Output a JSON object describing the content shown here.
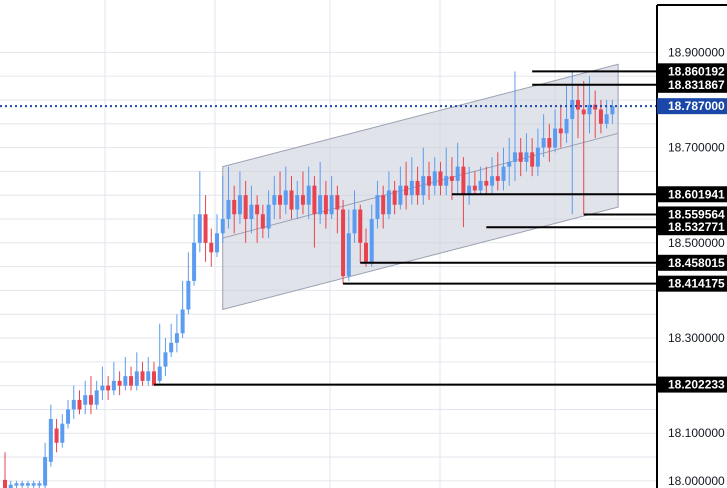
{
  "chart_data": {
    "type": "candlestick",
    "title": "",
    "xlabel": "",
    "ylabel": "",
    "ylim": [
      17.985,
      19.01
    ],
    "y_ticks": [
      "18.000000",
      "18.100000",
      "18.300000",
      "18.500000",
      "18.700000",
      "18.900000"
    ],
    "current_price": "18.787000",
    "grid": true,
    "colors": {
      "up": "#5b9cf0",
      "down": "#e8444f",
      "level": "#000000",
      "current": "#1a47a8",
      "channel_fill": "#c8ccd8",
      "channel_edge": "#9aa0b0",
      "grid": "#e3e6ee"
    },
    "levels": [
      {
        "label": "18.860192",
        "value": 18.860192,
        "from_bar": 92
      },
      {
        "label": "18.831867",
        "value": 18.831867,
        "from_bar": 92
      },
      {
        "label": "18.601941",
        "value": 18.601941,
        "from_bar": 78
      },
      {
        "label": "18.559564",
        "value": 18.559564,
        "from_bar": 101
      },
      {
        "label": "18.532771",
        "value": 18.532771,
        "from_bar": 84
      },
      {
        "label": "18.458015",
        "value": 18.458015,
        "from_bar": 62
      },
      {
        "label": "18.414175",
        "value": 18.414175,
        "from_bar": 59
      },
      {
        "label": "18.202233",
        "value": 18.202233,
        "from_bar": 26
      }
    ],
    "channel": {
      "from_bar": 38,
      "to_bar": 107,
      "upper": [
        18.66,
        18.875
      ],
      "middle": [
        18.51,
        18.73
      ],
      "lower": [
        18.36,
        18.575
      ]
    },
    "candles": [
      [
        18.002,
        17.985,
        18.06,
        17.98
      ],
      [
        17.98,
        17.992,
        18.0,
        17.975
      ],
      [
        17.99,
        17.995,
        18.0,
        17.98
      ],
      [
        17.99,
        17.995,
        18.0,
        17.98
      ],
      [
        17.99,
        17.995,
        18.0,
        17.98
      ],
      [
        17.99,
        17.995,
        18.0,
        17.98
      ],
      [
        17.99,
        17.995,
        18.0,
        17.98
      ],
      [
        17.99,
        18.05,
        18.08,
        17.98
      ],
      [
        18.04,
        18.13,
        18.16,
        18.03
      ],
      [
        18.11,
        18.08,
        18.13,
        18.06
      ],
      [
        18.08,
        18.12,
        18.14,
        18.07
      ],
      [
        18.12,
        18.15,
        18.17,
        18.11
      ],
      [
        18.15,
        18.17,
        18.2,
        18.13
      ],
      [
        18.17,
        18.15,
        18.19,
        18.14
      ],
      [
        18.16,
        18.18,
        18.21,
        18.14
      ],
      [
        18.18,
        18.16,
        18.22,
        18.14
      ],
      [
        18.16,
        18.19,
        18.21,
        18.15
      ],
      [
        18.19,
        18.2,
        18.24,
        18.17
      ],
      [
        18.2,
        18.19,
        18.22,
        18.17
      ],
      [
        18.19,
        18.21,
        18.25,
        18.18
      ],
      [
        18.21,
        18.2,
        18.23,
        18.18
      ],
      [
        18.2,
        18.22,
        18.26,
        18.19
      ],
      [
        18.22,
        18.2,
        18.24,
        18.19
      ],
      [
        18.2,
        18.23,
        18.27,
        18.19
      ],
      [
        18.23,
        18.21,
        18.25,
        18.2
      ],
      [
        18.21,
        18.23,
        18.26,
        18.2
      ],
      [
        18.23,
        18.2,
        18.25,
        18.202
      ],
      [
        18.21,
        18.24,
        18.33,
        18.205
      ],
      [
        18.24,
        18.27,
        18.3,
        18.22
      ],
      [
        18.27,
        18.29,
        18.33,
        18.26
      ],
      [
        18.29,
        18.31,
        18.35,
        18.27
      ],
      [
        18.31,
        18.36,
        18.42,
        18.3
      ],
      [
        18.36,
        18.42,
        18.48,
        18.35
      ],
      [
        18.42,
        18.5,
        18.56,
        18.41
      ],
      [
        18.5,
        18.56,
        18.65,
        18.48
      ],
      [
        18.56,
        18.5,
        18.6,
        18.46
      ],
      [
        18.5,
        18.48,
        18.53,
        18.45
      ],
      [
        18.48,
        18.52,
        18.56,
        18.47
      ],
      [
        18.52,
        18.55,
        18.64,
        18.5
      ],
      [
        18.55,
        18.59,
        18.66,
        18.53
      ],
      [
        18.59,
        18.56,
        18.62,
        18.52
      ],
      [
        18.56,
        18.6,
        18.65,
        18.54
      ],
      [
        18.6,
        18.55,
        18.63,
        18.5
      ],
      [
        18.55,
        18.58,
        18.62,
        18.52
      ],
      [
        18.58,
        18.56,
        18.6,
        18.5
      ],
      [
        18.56,
        18.53,
        18.58,
        18.51
      ],
      [
        18.53,
        18.58,
        18.61,
        18.51
      ],
      [
        18.58,
        18.6,
        18.64,
        18.55
      ],
      [
        18.6,
        18.58,
        18.65,
        18.55
      ],
      [
        18.58,
        18.61,
        18.66,
        18.56
      ],
      [
        18.61,
        18.57,
        18.64,
        18.55
      ],
      [
        18.57,
        18.6,
        18.63,
        18.55
      ],
      [
        18.6,
        18.58,
        18.65,
        18.56
      ],
      [
        18.58,
        18.62,
        18.66,
        18.55
      ],
      [
        18.62,
        18.56,
        18.64,
        18.49
      ],
      [
        18.56,
        18.6,
        18.67,
        18.54
      ],
      [
        18.6,
        18.56,
        18.63,
        18.53
      ],
      [
        18.56,
        18.6,
        18.64,
        18.55
      ],
      [
        18.6,
        18.57,
        18.62,
        18.52
      ],
      [
        18.57,
        18.43,
        18.59,
        18.414
      ],
      [
        18.43,
        18.52,
        18.57,
        18.42
      ],
      [
        18.52,
        18.57,
        18.61,
        18.5
      ],
      [
        18.57,
        18.5,
        18.58,
        18.458
      ],
      [
        18.5,
        18.46,
        18.53,
        18.45
      ],
      [
        18.46,
        18.55,
        18.58,
        18.45
      ],
      [
        18.55,
        18.6,
        18.63,
        18.53
      ],
      [
        18.6,
        18.56,
        18.62,
        18.53
      ],
      [
        18.56,
        18.61,
        18.65,
        18.55
      ],
      [
        18.61,
        18.58,
        18.63,
        18.56
      ],
      [
        18.58,
        18.62,
        18.66,
        18.57
      ],
      [
        18.62,
        18.6,
        18.67,
        18.57
      ],
      [
        18.6,
        18.63,
        18.68,
        18.58
      ],
      [
        18.63,
        18.6,
        18.66,
        18.58
      ],
      [
        18.6,
        18.64,
        18.7,
        18.58
      ],
      [
        18.64,
        18.62,
        18.67,
        18.59
      ],
      [
        18.62,
        18.65,
        18.68,
        18.6
      ],
      [
        18.65,
        18.62,
        18.67,
        18.6
      ],
      [
        18.62,
        18.64,
        18.7,
        18.6
      ],
      [
        18.64,
        18.63,
        18.68,
        18.59
      ],
      [
        18.63,
        18.66,
        18.71,
        18.6
      ],
      [
        18.66,
        18.6,
        18.68,
        18.533
      ],
      [
        18.6,
        18.62,
        18.66,
        18.58
      ],
      [
        18.62,
        18.61,
        18.65,
        18.6
      ],
      [
        18.61,
        18.63,
        18.66,
        18.6
      ],
      [
        18.63,
        18.62,
        18.66,
        18.6
      ],
      [
        18.62,
        18.64,
        18.68,
        18.6
      ],
      [
        18.64,
        18.63,
        18.69,
        18.61
      ],
      [
        18.63,
        18.66,
        18.7,
        18.61
      ],
      [
        18.66,
        18.67,
        18.72,
        18.62
      ],
      [
        18.67,
        18.69,
        18.86,
        18.63
      ],
      [
        18.69,
        18.67,
        18.72,
        18.64
      ],
      [
        18.67,
        18.69,
        18.73,
        18.65
      ],
      [
        18.69,
        18.66,
        18.72,
        18.64
      ],
      [
        18.66,
        18.7,
        18.74,
        18.64
      ],
      [
        18.7,
        18.72,
        18.77,
        18.68
      ],
      [
        18.72,
        18.7,
        18.75,
        18.67
      ],
      [
        18.7,
        18.74,
        18.78,
        18.69
      ],
      [
        18.74,
        18.73,
        18.79,
        18.7
      ],
      [
        18.73,
        18.76,
        18.83,
        18.71
      ],
      [
        18.76,
        18.8,
        18.86,
        18.56
      ],
      [
        18.8,
        18.78,
        18.83,
        18.72
      ],
      [
        18.78,
        18.77,
        18.84,
        18.56
      ],
      [
        18.77,
        18.79,
        18.85,
        18.73
      ],
      [
        18.79,
        18.78,
        18.82,
        18.72
      ],
      [
        18.78,
        18.75,
        18.8,
        18.73
      ],
      [
        18.75,
        18.77,
        18.8,
        18.74
      ],
      [
        18.77,
        18.787,
        18.8,
        18.75
      ]
    ]
  }
}
